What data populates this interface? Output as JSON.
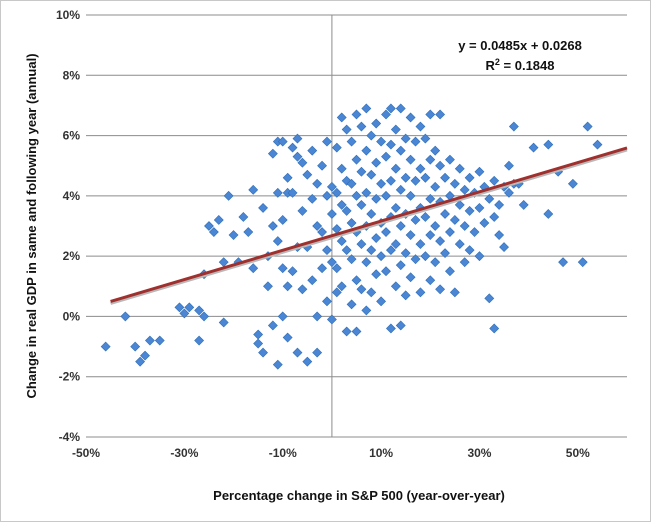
{
  "chart_data": {
    "type": "scatter",
    "xlabel": "Percentage change in S&P 500 (year-over-year)",
    "ylabel": "Change in real GDP in same and following year (annual)",
    "xlim": [
      -0.5,
      0.6
    ],
    "ylim": [
      -0.04,
      0.1
    ],
    "x_ticks": [
      -0.5,
      -0.3,
      -0.1,
      0.1,
      0.3,
      0.5
    ],
    "x_tick_labels": [
      "-50%",
      "-30%",
      "-10%",
      "10%",
      "30%",
      "50%"
    ],
    "y_ticks": [
      -0.04,
      -0.02,
      0.0,
      0.02,
      0.04,
      0.06,
      0.08,
      0.1
    ],
    "y_tick_labels": [
      "-4%",
      "-2%",
      "0%",
      "2%",
      "4%",
      "6%",
      "8%",
      "10%"
    ],
    "grid": "horizontal",
    "marker_color": "#4a86d4",
    "trendline": {
      "slope": 0.0485,
      "intercept": 0.0268,
      "x_range": [
        -0.45,
        0.6
      ],
      "color": "#a0302e",
      "equation_label": "y = 0.0485x + 0.0268",
      "r2_label": "R",
      "r2_sup": "2",
      "r2_value": " = 0.1848"
    },
    "points": [
      [
        -0.46,
        -0.01
      ],
      [
        -0.42,
        0.0
      ],
      [
        -0.4,
        -0.01
      ],
      [
        -0.39,
        -0.015
      ],
      [
        -0.38,
        -0.013
      ],
      [
        -0.37,
        -0.008
      ],
      [
        -0.35,
        -0.008
      ],
      [
        -0.31,
        0.003
      ],
      [
        -0.3,
        0.001
      ],
      [
        -0.29,
        0.003
      ],
      [
        -0.27,
        0.002
      ],
      [
        -0.27,
        -0.008
      ],
      [
        -0.26,
        0.0
      ],
      [
        -0.26,
        0.014
      ],
      [
        -0.25,
        0.03
      ],
      [
        -0.24,
        0.028
      ],
      [
        -0.23,
        0.032
      ],
      [
        -0.22,
        0.018
      ],
      [
        -0.22,
        -0.002
      ],
      [
        -0.21,
        0.04
      ],
      [
        -0.2,
        0.027
      ],
      [
        -0.19,
        0.018
      ],
      [
        -0.18,
        0.033
      ],
      [
        -0.17,
        0.028
      ],
      [
        -0.16,
        0.042
      ],
      [
        -0.16,
        0.016
      ],
      [
        -0.15,
        -0.006
      ],
      [
        -0.15,
        -0.009
      ],
      [
        -0.14,
        0.036
      ],
      [
        -0.14,
        -0.012
      ],
      [
        -0.13,
        0.02
      ],
      [
        -0.13,
        0.01
      ],
      [
        -0.12,
        0.054
      ],
      [
        -0.12,
        0.03
      ],
      [
        -0.12,
        -0.003
      ],
      [
        -0.11,
        0.058
      ],
      [
        -0.11,
        0.041
      ],
      [
        -0.11,
        0.025
      ],
      [
        -0.11,
        -0.016
      ],
      [
        -0.1,
        0.058
      ],
      [
        -0.1,
        0.032
      ],
      [
        -0.1,
        0.016
      ],
      [
        -0.1,
        0.0
      ],
      [
        -0.09,
        0.046
      ],
      [
        -0.09,
        0.041
      ],
      [
        -0.09,
        0.01
      ],
      [
        -0.09,
        -0.007
      ],
      [
        -0.08,
        0.056
      ],
      [
        -0.08,
        0.041
      ],
      [
        -0.08,
        0.015
      ],
      [
        -0.07,
        0.059
      ],
      [
        -0.07,
        0.053
      ],
      [
        -0.07,
        0.023
      ],
      [
        -0.07,
        -0.012
      ],
      [
        -0.06,
        0.051
      ],
      [
        -0.06,
        0.035
      ],
      [
        -0.06,
        0.009
      ],
      [
        -0.05,
        0.047
      ],
      [
        -0.05,
        0.023
      ],
      [
        -0.05,
        -0.015
      ],
      [
        -0.04,
        0.055
      ],
      [
        -0.04,
        0.039
      ],
      [
        -0.04,
        0.012
      ],
      [
        -0.03,
        0.044
      ],
      [
        -0.03,
        0.03
      ],
      [
        -0.03,
        0.0
      ],
      [
        -0.03,
        -0.012
      ],
      [
        -0.02,
        0.05
      ],
      [
        -0.02,
        0.028
      ],
      [
        -0.02,
        0.016
      ],
      [
        -0.01,
        0.058
      ],
      [
        -0.01,
        0.04
      ],
      [
        -0.01,
        0.022
      ],
      [
        -0.01,
        0.005
      ],
      [
        0.0,
        0.043
      ],
      [
        0.0,
        0.034
      ],
      [
        0.0,
        0.018
      ],
      [
        0.0,
        -0.001
      ],
      [
        0.01,
        0.056
      ],
      [
        0.01,
        0.041
      ],
      [
        0.01,
        0.029
      ],
      [
        0.01,
        0.016
      ],
      [
        0.01,
        0.008
      ],
      [
        0.02,
        0.066
      ],
      [
        0.02,
        0.049
      ],
      [
        0.02,
        0.037
      ],
      [
        0.02,
        0.025
      ],
      [
        0.02,
        0.01
      ],
      [
        0.03,
        0.062
      ],
      [
        0.03,
        0.045
      ],
      [
        0.03,
        0.035
      ],
      [
        0.03,
        0.022
      ],
      [
        0.03,
        -0.005
      ],
      [
        0.04,
        0.058
      ],
      [
        0.04,
        0.044
      ],
      [
        0.04,
        0.031
      ],
      [
        0.04,
        0.019
      ],
      [
        0.04,
        0.004
      ],
      [
        0.05,
        0.067
      ],
      [
        0.05,
        0.052
      ],
      [
        0.05,
        0.04
      ],
      [
        0.05,
        0.028
      ],
      [
        0.05,
        0.012
      ],
      [
        0.05,
        -0.005
      ],
      [
        0.06,
        0.063
      ],
      [
        0.06,
        0.048
      ],
      [
        0.06,
        0.037
      ],
      [
        0.06,
        0.024
      ],
      [
        0.06,
        0.009
      ],
      [
        0.07,
        0.069
      ],
      [
        0.07,
        0.055
      ],
      [
        0.07,
        0.041
      ],
      [
        0.07,
        0.03
      ],
      [
        0.07,
        0.018
      ],
      [
        0.07,
        0.002
      ],
      [
        0.08,
        0.06
      ],
      [
        0.08,
        0.047
      ],
      [
        0.08,
        0.034
      ],
      [
        0.08,
        0.022
      ],
      [
        0.08,
        0.008
      ],
      [
        0.09,
        0.064
      ],
      [
        0.09,
        0.051
      ],
      [
        0.09,
        0.039
      ],
      [
        0.09,
        0.026
      ],
      [
        0.09,
        0.014
      ],
      [
        0.1,
        0.058
      ],
      [
        0.1,
        0.044
      ],
      [
        0.1,
        0.031
      ],
      [
        0.1,
        0.02
      ],
      [
        0.1,
        0.005
      ],
      [
        0.11,
        0.067
      ],
      [
        0.11,
        0.053
      ],
      [
        0.11,
        0.04
      ],
      [
        0.11,
        0.028
      ],
      [
        0.11,
        0.015
      ],
      [
        0.12,
        0.069
      ],
      [
        0.12,
        0.057
      ],
      [
        0.12,
        0.045
      ],
      [
        0.12,
        0.033
      ],
      [
        0.12,
        0.022
      ],
      [
        0.12,
        -0.004
      ],
      [
        0.13,
        0.062
      ],
      [
        0.13,
        0.049
      ],
      [
        0.13,
        0.036
      ],
      [
        0.13,
        0.024
      ],
      [
        0.13,
        0.01
      ],
      [
        0.14,
        0.069
      ],
      [
        0.14,
        0.055
      ],
      [
        0.14,
        0.042
      ],
      [
        0.14,
        0.03
      ],
      [
        0.14,
        0.017
      ],
      [
        0.14,
        -0.003
      ],
      [
        0.15,
        0.059
      ],
      [
        0.15,
        0.046
      ],
      [
        0.15,
        0.034
      ],
      [
        0.15,
        0.021
      ],
      [
        0.15,
        0.007
      ],
      [
        0.16,
        0.066
      ],
      [
        0.16,
        0.052
      ],
      [
        0.16,
        0.04
      ],
      [
        0.16,
        0.027
      ],
      [
        0.16,
        0.013
      ],
      [
        0.17,
        0.058
      ],
      [
        0.17,
        0.045
      ],
      [
        0.17,
        0.032
      ],
      [
        0.17,
        0.019
      ],
      [
        0.18,
        0.063
      ],
      [
        0.18,
        0.049
      ],
      [
        0.18,
        0.036
      ],
      [
        0.18,
        0.024
      ],
      [
        0.18,
        0.008
      ],
      [
        0.19,
        0.059
      ],
      [
        0.19,
        0.046
      ],
      [
        0.19,
        0.033
      ],
      [
        0.19,
        0.02
      ],
      [
        0.2,
        0.067
      ],
      [
        0.2,
        0.052
      ],
      [
        0.2,
        0.039
      ],
      [
        0.2,
        0.027
      ],
      [
        0.2,
        0.012
      ],
      [
        0.21,
        0.055
      ],
      [
        0.21,
        0.043
      ],
      [
        0.21,
        0.03
      ],
      [
        0.21,
        0.018
      ],
      [
        0.22,
        0.067
      ],
      [
        0.22,
        0.05
      ],
      [
        0.22,
        0.038
      ],
      [
        0.22,
        0.025
      ],
      [
        0.22,
        0.009
      ],
      [
        0.23,
        0.046
      ],
      [
        0.23,
        0.034
      ],
      [
        0.23,
        0.021
      ],
      [
        0.24,
        0.052
      ],
      [
        0.24,
        0.04
      ],
      [
        0.24,
        0.028
      ],
      [
        0.24,
        0.015
      ],
      [
        0.25,
        0.044
      ],
      [
        0.25,
        0.032
      ],
      [
        0.25,
        0.008
      ],
      [
        0.26,
        0.049
      ],
      [
        0.26,
        0.037
      ],
      [
        0.26,
        0.024
      ],
      [
        0.27,
        0.042
      ],
      [
        0.27,
        0.03
      ],
      [
        0.27,
        0.018
      ],
      [
        0.28,
        0.046
      ],
      [
        0.28,
        0.035
      ],
      [
        0.28,
        0.022
      ],
      [
        0.29,
        0.041
      ],
      [
        0.29,
        0.028
      ],
      [
        0.3,
        0.048
      ],
      [
        0.3,
        0.036
      ],
      [
        0.3,
        0.02
      ],
      [
        0.31,
        0.043
      ],
      [
        0.31,
        0.031
      ],
      [
        0.32,
        0.039
      ],
      [
        0.32,
        0.006
      ],
      [
        0.33,
        0.045
      ],
      [
        0.33,
        0.033
      ],
      [
        0.33,
        -0.004
      ],
      [
        0.34,
        0.037
      ],
      [
        0.34,
        0.027
      ],
      [
        0.35,
        0.043
      ],
      [
        0.35,
        0.023
      ],
      [
        0.36,
        0.05
      ],
      [
        0.36,
        0.041
      ],
      [
        0.37,
        0.063
      ],
      [
        0.37,
        0.044
      ],
      [
        0.38,
        0.044
      ],
      [
        0.39,
        0.037
      ],
      [
        0.41,
        0.056
      ],
      [
        0.44,
        0.057
      ],
      [
        0.44,
        0.034
      ],
      [
        0.46,
        0.048
      ],
      [
        0.47,
        0.018
      ],
      [
        0.49,
        0.044
      ],
      [
        0.51,
        0.018
      ],
      [
        0.52,
        0.063
      ],
      [
        0.54,
        0.057
      ]
    ]
  }
}
